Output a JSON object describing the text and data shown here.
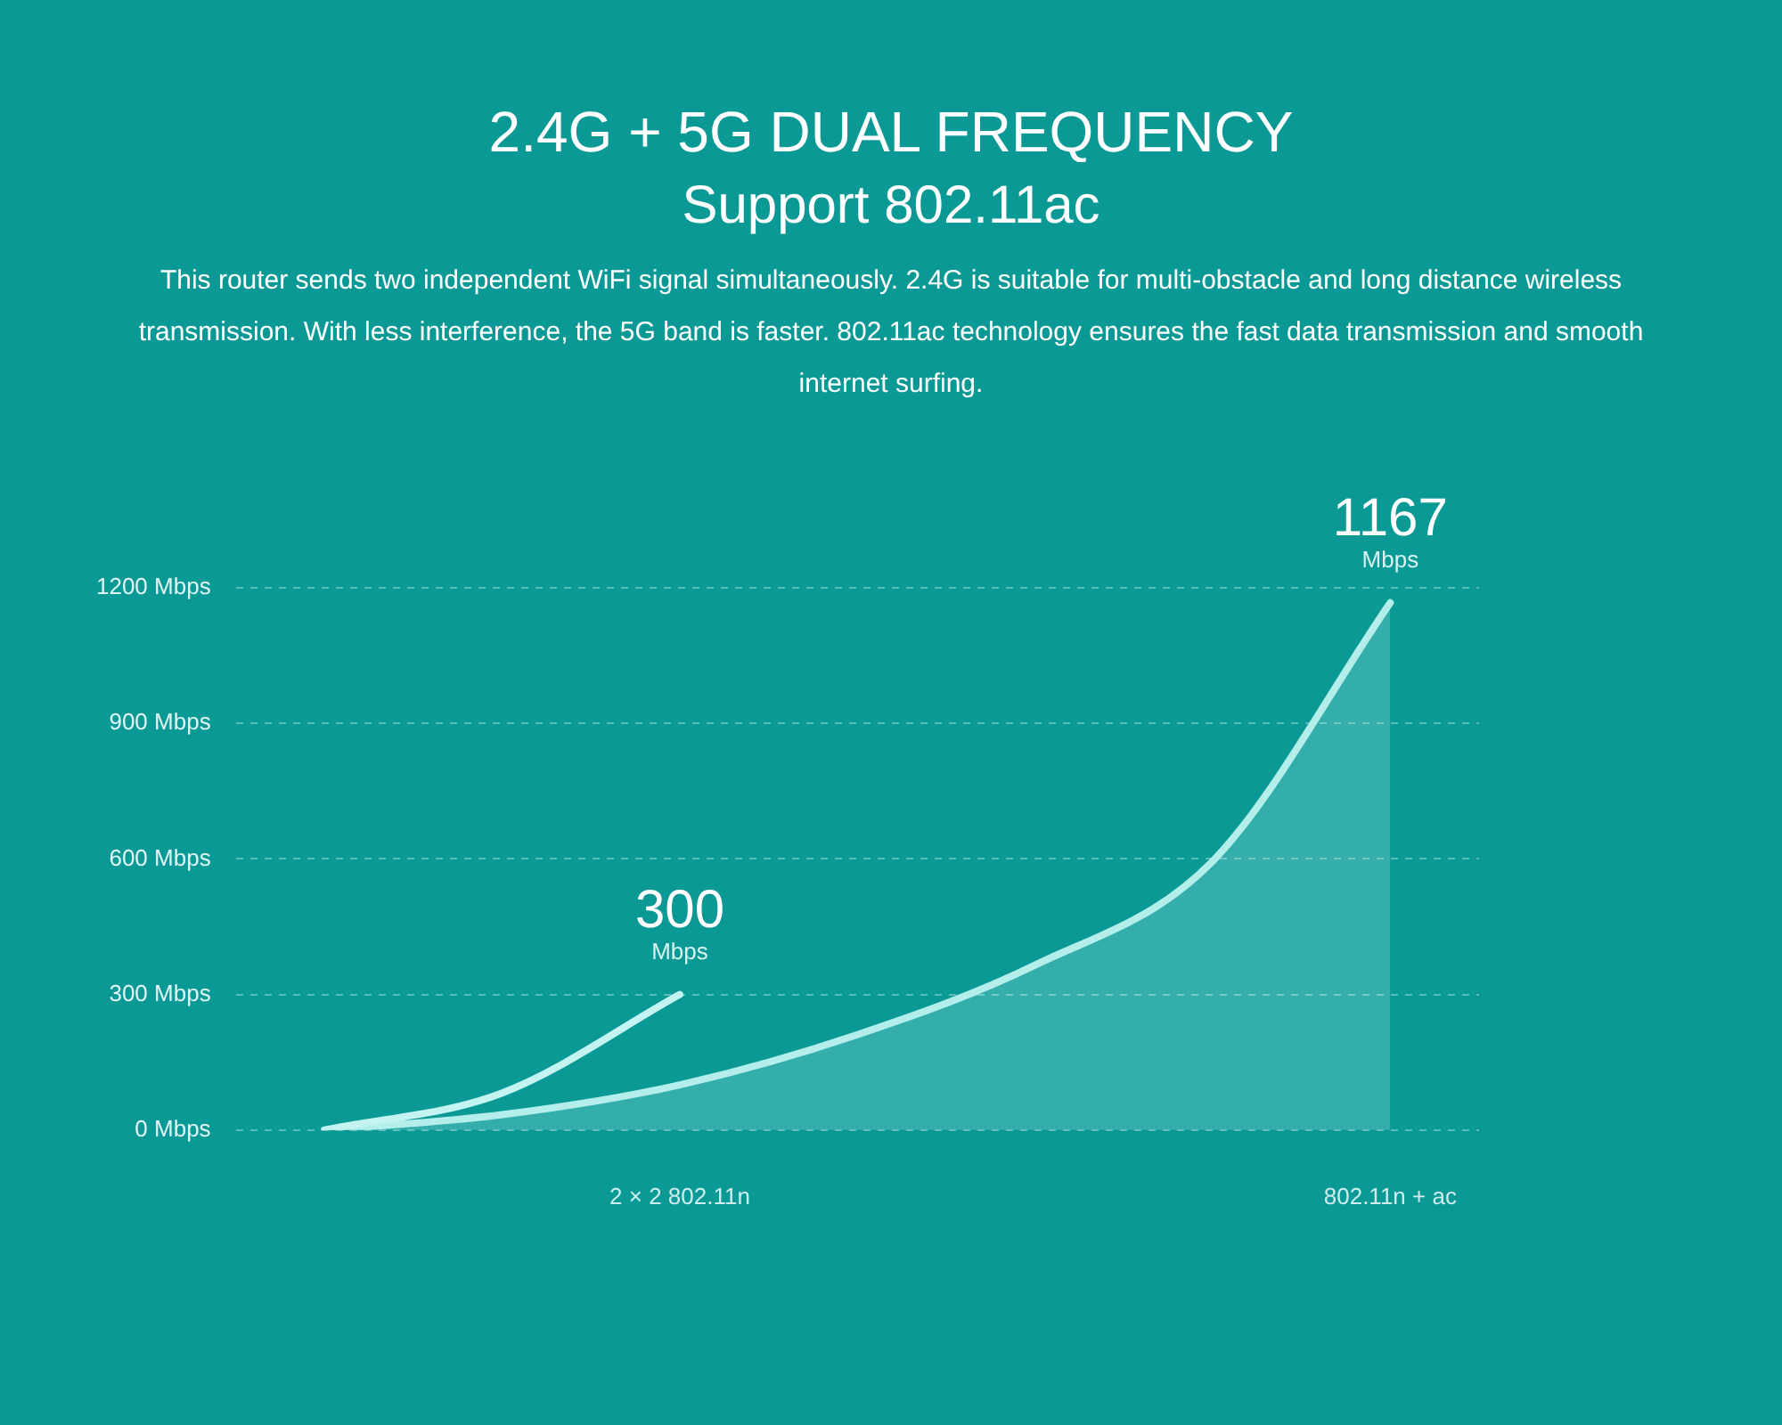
{
  "chart_data": {
    "type": "line",
    "title": "2.4G + 5G DUAL FREQUENCY",
    "subtitle": "Support 802.11ac",
    "annotations": [
      "This router sends two independent WiFi signal simultaneously. 2.4G is suitable for multi-obstacle and long distance wireless transmission. With less interference, the 5G band is faster. 802.11ac technology ensures the fast data transmission and smooth internet surfing."
    ],
    "categories": [
      null,
      null,
      "2 × 2 802.11n",
      null,
      null,
      null,
      "802.11n + ac"
    ],
    "ylim": [
      0,
      1200
    ],
    "yticks": [
      {
        "value": 0,
        "label": "0 Mbps"
      },
      {
        "value": 300,
        "label": "300 Mbps"
      },
      {
        "value": 600,
        "label": "600 Mbps"
      },
      {
        "value": 900,
        "label": "900 Mbps"
      },
      {
        "value": 1200,
        "label": "1200 Mbps"
      }
    ],
    "grid": "y",
    "legend": false,
    "series": [
      {
        "type": "line",
        "color": "#c4f4f1",
        "values": [
          0,
          82,
          300,
          null,
          null,
          null,
          null
        ],
        "value_labels": [
          null,
          null,
          "300 Mbps",
          null,
          null,
          null,
          null
        ]
      },
      {
        "type": "area",
        "color": "#b4eeea",
        "values": [
          0,
          34,
          100,
          211,
          365,
          595,
          1167
        ],
        "value_labels": [
          null,
          null,
          null,
          null,
          null,
          null,
          "1167 Mbps"
        ]
      }
    ]
  }
}
